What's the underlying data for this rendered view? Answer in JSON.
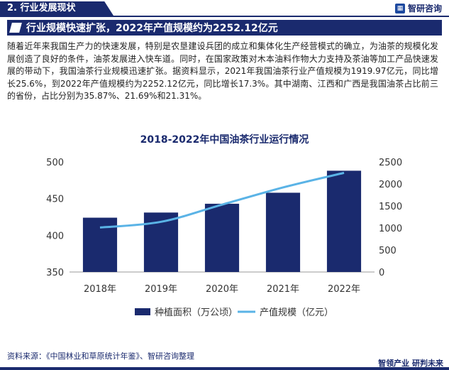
{
  "header": {
    "section": "2. 行业发展现状",
    "brand": "智研咨询",
    "headline": "行业规模快速扩张，2022年产值规模约为2252.12亿元"
  },
  "body": {
    "paragraph": "随着近年来我国生产力的快速发展，特别是农垦建设兵团的成立和集体化生产经营模式的确立，为油茶的规模化发展创造了良好的条件，油茶发展进入快车道。同时，在国家政策对木本油料作物大力支持及茶油等加工产品快速发展的带动下，我国油茶行业规模迅速扩张。据资料显示，2021年我国油茶行业产值规模为1919.97亿元，同比增长25.6%，到2022年产值规模约为2252.12亿元，同比增长17.3%。其中湖南、江西和广西是我国油茶占比前三的省份，占比分别为35.87%、21.69%和21.31%。"
  },
  "chart_data": {
    "type": "bar",
    "title": "2018-2022年中国油茶行业运行情况",
    "categories": [
      "2018年",
      "2019年",
      "2020年",
      "2021年",
      "2022年"
    ],
    "series": [
      {
        "name": "种植面积（万公顷）",
        "type": "bar",
        "axis": "left",
        "color": "#1a2a6e",
        "values": [
          424,
          431,
          443,
          458,
          488
        ]
      },
      {
        "name": "产值规模（亿元）",
        "type": "line",
        "axis": "right",
        "color": "#5ab3e6",
        "values": [
          1010,
          1140,
          1530,
          1919.97,
          2252.12
        ]
      }
    ],
    "y_left": {
      "min": 350,
      "max": 500,
      "ticks": [
        350,
        400,
        450,
        500
      ]
    },
    "y_right": {
      "min": 0,
      "max": 2500,
      "ticks": [
        0,
        500,
        1000,
        1500,
        2000,
        2500
      ]
    },
    "legend_position": "bottom",
    "grid": false
  },
  "footer": {
    "source": "资料来源：《中国林业和草原统计年鉴》、智研咨询整理",
    "brand": "智领产业 研判未来"
  }
}
